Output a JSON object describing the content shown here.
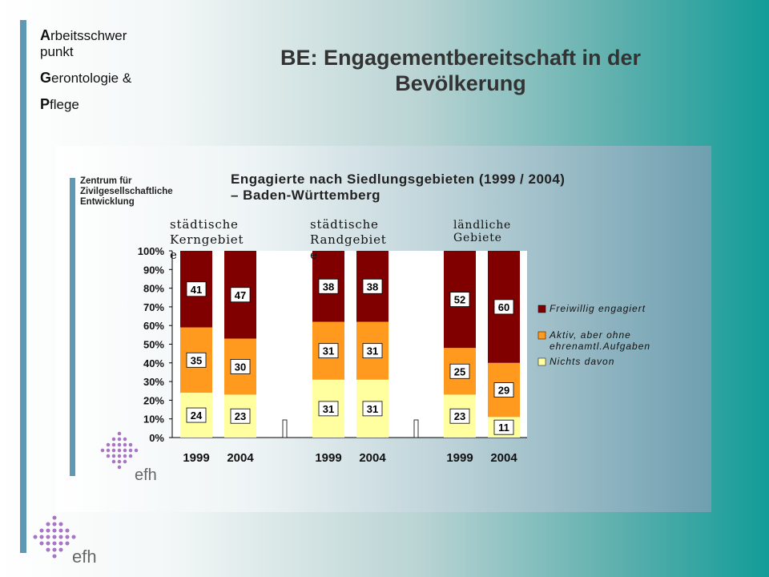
{
  "brand": {
    "line1_initial": "A",
    "line1_rest": "rbeitsschwer",
    "line1b": "punkt",
    "line2_initial": "G",
    "line2_rest": "erontologie &",
    "line3_initial": "P",
    "line3_rest": "flege"
  },
  "slide_title_line1": "BE: Engagementbereitschaft in der",
  "slide_title_line2": "Bevölkerung",
  "logo_text": "efh",
  "source_lines": [
    "Zentrum für",
    "Zivilgesellschaftliche",
    "Entwicklung"
  ],
  "colors": {
    "freiwillig": "#800000",
    "aktiv": "#ff9a1f",
    "nichts": "#ffffa0",
    "accent_bar": "#5f98b4",
    "logo": "#a874c4"
  },
  "chart_data": {
    "type": "bar",
    "stacked": true,
    "title_line1": "Engagierte nach Siedlungsgebieten (1999 / 2004)",
    "title_line2": "– Baden-Württemberg",
    "groups": [
      {
        "label_line1": "städtische",
        "label_line2": "Kerngebiet",
        "label_line3": "e"
      },
      {
        "label_line1": "städtische",
        "label_line2": "Randgebiet",
        "label_line3": "e"
      },
      {
        "label_line1": "ländliche",
        "label_line2": "Gebiete",
        "label_line3": ""
      }
    ],
    "categories": [
      "1999",
      "2004",
      "1999",
      "2004",
      "1999",
      "2004"
    ],
    "series": [
      {
        "name": "Nichts davon",
        "values": [
          24,
          23,
          31,
          31,
          23,
          11
        ]
      },
      {
        "name": "Aktiv, aber ohne ehrenamtl.Aufgaben",
        "values": [
          35,
          30,
          31,
          31,
          25,
          29
        ]
      },
      {
        "name": "Freiwillig engagiert",
        "values": [
          41,
          47,
          38,
          38,
          52,
          60
        ]
      }
    ],
    "legend": [
      {
        "series": 2,
        "line1": "Freiwillig engagiert",
        "line2": ""
      },
      {
        "series": 1,
        "line1": "Aktiv, aber ohne",
        "line2": "ehrenamtl.Aufgaben"
      },
      {
        "series": 0,
        "line1": "Nichts davon",
        "line2": ""
      }
    ],
    "yticks": [
      "0%",
      "10%",
      "20%",
      "30%",
      "40%",
      "50%",
      "60%",
      "70%",
      "80%",
      "90%",
      "100%"
    ],
    "ylim": [
      0,
      100
    ],
    "legend_position": "right",
    "grid": false
  }
}
